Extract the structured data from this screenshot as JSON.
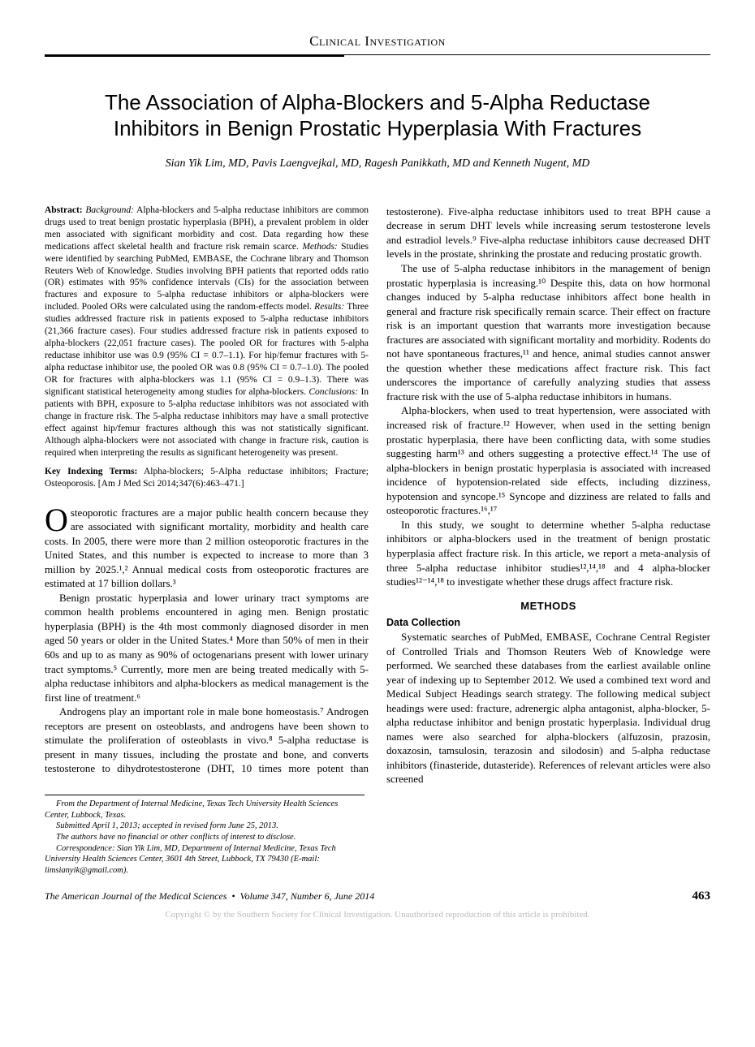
{
  "header": {
    "section": "Clinical Investigation"
  },
  "title": "The Association of Alpha-Blockers and 5-Alpha Reductase Inhibitors in Benign Prostatic Hyperplasia With Fractures",
  "authors": "Sian Yik Lim, MD, Pavis Laengvejkal, MD, Ragesh Panikkath, MD and Kenneth Nugent, MD",
  "abstract": {
    "label": "Abstract:",
    "bg_label": "Background:",
    "bg": "Alpha-blockers and 5-alpha reductase inhibitors are common drugs used to treat benign prostatic hyperplasia (BPH), a prevalent problem in older men associated with significant morbidity and cost. Data regarding how these medications affect skeletal health and fracture risk remain scarce.",
    "m_label": "Methods:",
    "m": "Studies were identified by searching PubMed, EMBASE, the Cochrane library and Thomson Reuters Web of Knowledge. Studies involving BPH patients that reported odds ratio (OR) estimates with 95% confidence intervals (CIs) for the association between fractures and exposure to 5-alpha reductase inhibitors or alpha-blockers were included. Pooled ORs were calculated using the random-effects model.",
    "r_label": "Results:",
    "r": "Three studies addressed fracture risk in patients exposed to 5-alpha reductase inhibitors (21,366 fracture cases). Four studies addressed fracture risk in patients exposed to alpha-blockers (22,051 fracture cases). The pooled OR for fractures with 5-alpha reductase inhibitor use was 0.9 (95% CI = 0.7–1.1). For hip/femur fractures with 5-alpha reductase inhibitor use, the pooled OR was 0.8 (95% CI = 0.7–1.0). The pooled OR for fractures with alpha-blockers was 1.1 (95% CI = 0.9–1.3). There was significant statistical heterogeneity among studies for alpha-blockers.",
    "c_label": "Conclusions:",
    "c": "In patients with BPH, exposure to 5-alpha reductase inhibitors was not associated with change in fracture risk. The 5-alpha reductase inhibitors may have a small protective effect against hip/femur fractures although this was not statistically significant. Although alpha-blockers were not associated with change in fracture risk, caution is required when interpreting the results as significant heterogeneity was present."
  },
  "keyterms": {
    "label": "Key Indexing Terms:",
    "text": "Alpha-blockers; 5-Alpha reductase inhibitors; Fracture; Osteoporosis. [Am J Med Sci 2014;347(6):463–471.]"
  },
  "body": {
    "p1_drop": "O",
    "p1": "steoporotic fractures are a major public health concern because they are associated with significant mortality, morbidity and health care costs. In 2005, there were more than 2 million osteoporotic fractures in the United States, and this number is expected to increase to more than 3 million by 2025.¹,² Annual medical costs from osteoporotic fractures are estimated at 17 billion dollars.³",
    "p2": "Benign prostatic hyperplasia and lower urinary tract symptoms are common health problems encountered in aging men. Benign prostatic hyperplasia (BPH) is the 4th most commonly diagnosed disorder in men aged 50 years or older in the United States.⁴ More than 50% of men in their 60s and up to as many as 90% of octogenarians present with lower urinary tract symptoms.⁵ Currently, more men are being treated medically with 5-alpha reductase inhibitors and alpha-blockers as medical management is the first line of treatment.⁶",
    "p3": "Androgens play an important role in male bone homeostasis.⁷ Androgen receptors are present on osteoblasts, and androgens have been shown to stimulate the proliferation of osteoblasts in vivo.⁸ 5-alpha reductase is present in many tissues, including the prostate and bone, and converts testosterone to dihydrotestosterone (DHT, 10 times more potent than testosterone). Five-alpha reductase inhibitors used to treat BPH cause a decrease in serum DHT levels while increasing serum testosterone levels and estradiol levels.⁹ Five-alpha reductase inhibitors cause decreased DHT levels in the prostate, shrinking the prostate and reducing prostatic growth.",
    "p4": "The use of 5-alpha reductase inhibitors in the management of benign prostatic hyperplasia is increasing.¹⁰ Despite this, data on how hormonal changes induced by 5-alpha reductase inhibitors affect bone health in general and fracture risk specifically remain scarce. Their effect on fracture risk is an important question that warrants more investigation because fractures are associated with significant mortality and morbidity. Rodents do not have spontaneous fractures,¹¹ and hence, animal studies cannot answer the question whether these medications affect fracture risk. This fact underscores the importance of carefully analyzing studies that assess fracture risk with the use of 5-alpha reductase inhibitors in humans.",
    "p5": "Alpha-blockers, when used to treat hypertension, were associated with increased risk of fracture.¹² However, when used in the setting benign prostatic hyperplasia, there have been conflicting data, with some studies suggesting harm¹³ and others suggesting a protective effect.¹⁴ The use of alpha-blockers in benign prostatic hyperplasia is associated with increased incidence of hypotension-related side effects, including dizziness, hypotension and syncope.¹⁵ Syncope and dizziness are related to falls and osteoporotic fractures.¹⁶,¹⁷",
    "p6": "In this study, we sought to determine whether 5-alpha reductase inhibitors or alpha-blockers used in the treatment of benign prostatic hyperplasia affect fracture risk. In this article, we report a meta-analysis of three 5-alpha reductase inhibitor studies¹²,¹⁴,¹⁸ and 4 alpha-blocker studies¹²⁻¹⁴,¹⁸ to investigate whether these drugs affect fracture risk."
  },
  "methods": {
    "heading": "METHODS",
    "sub1": "Data Collection",
    "p1": "Systematic searches of PubMed, EMBASE, Cochrane Central Register of Controlled Trials and Thomson Reuters Web of Knowledge were performed. We searched these databases from the earliest available online year of indexing up to September 2012. We used a combined text word and Medical Subject Headings search strategy. The following medical subject headings were used: fracture, adrenergic alpha antagonist, alpha-blocker, 5-alpha reductase inhibitor and benign prostatic hyperplasia. Individual drug names were also searched for alpha-blockers (alfuzosin, prazosin, doxazosin, tamsulosin, terazosin and silodosin) and 5-alpha reductase inhibitors (finasteride, dutasteride). References of relevant articles were also screened"
  },
  "footnotes": {
    "f1": "From the Department of Internal Medicine, Texas Tech University Health Sciences Center, Lubbock, Texas.",
    "f2": "Submitted April 1, 2013; accepted in revised form June 25, 2013.",
    "f3": "The authors have no financial or other conflicts of interest to disclose.",
    "f4": "Correspondence: Sian Yik Lim, MD, Department of Internal Medicine, Texas Tech University Health Sciences Center, 3601 4th Street, Lubbock, TX 79430 (E-mail: limsianyik@gmail.com)."
  },
  "footer": {
    "journal": "The American Journal of the Medical Sciences",
    "sep": "•",
    "issue": "Volume 347, Number 6, June 2014",
    "page": "463"
  },
  "copyright": "Copyright © by the Southern Society for Clinical Investigation. Unauthorized reproduction of this article is prohibited."
}
